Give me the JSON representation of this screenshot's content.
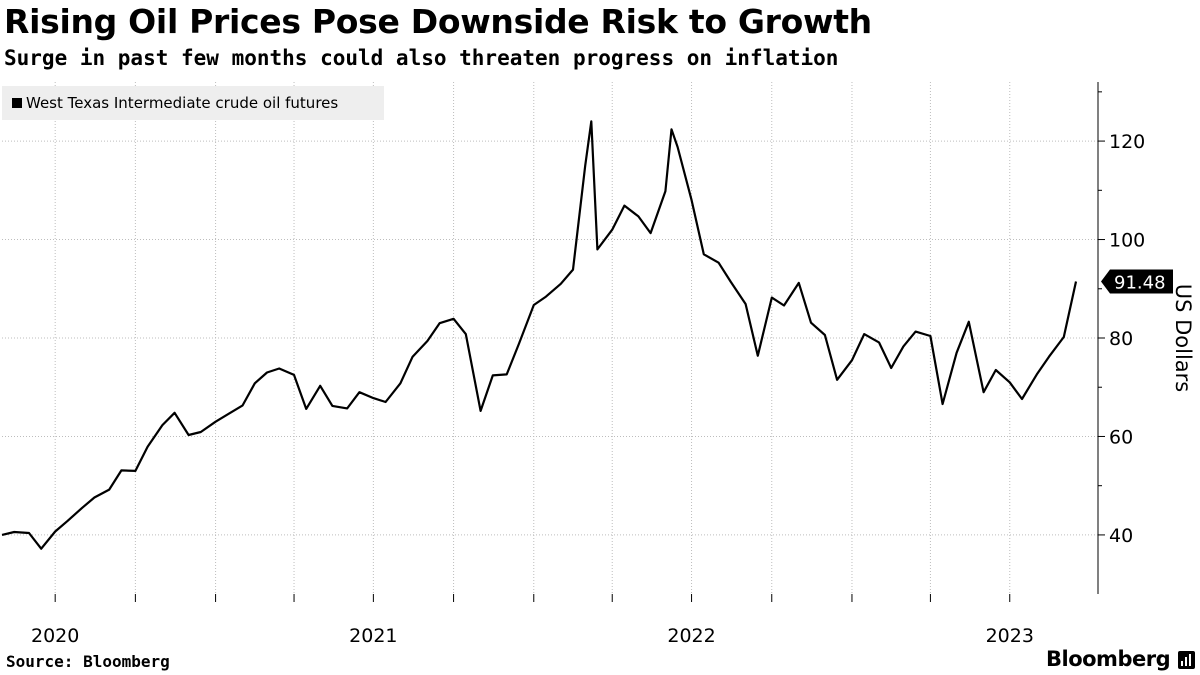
{
  "header": {
    "title": "Rising Oil Prices Pose Downside Risk to Growth",
    "subtitle": "Surge in past few months could also threaten progress on inflation"
  },
  "footer": {
    "source": "Source: Bloomberg",
    "brand": "Bloomberg"
  },
  "colors": {
    "line": "#000000",
    "grid": "#bdbdbd",
    "legend_bg": "#eeeeee",
    "last_badge": "#000000"
  },
  "icons": {
    "brand": "bloomberg-chart-icon"
  },
  "chart_data": {
    "type": "line",
    "title": "Rising Oil Prices Pose Downside Risk to Growth",
    "subtitle": "Surge in past few months could also threaten progress on inflation",
    "ylabel": "US Dollars",
    "ylim": [
      28,
      132
    ],
    "yticks": [
      40,
      60,
      80,
      100,
      120
    ],
    "xlim": [
      "2020-05-01",
      "2023-09-15"
    ],
    "xtick_labels": [
      {
        "label": "2020",
        "date": "2020-07-01"
      },
      {
        "label": "2021",
        "date": "2021-07-01"
      },
      {
        "label": "2022",
        "date": "2022-07-01"
      },
      {
        "label": "2023",
        "date": "2023-07-01"
      }
    ],
    "y_axis_side": "right",
    "grid": true,
    "legend_position": "top-left",
    "last_value_label": "91.48",
    "series": [
      {
        "name": "West Texas Intermediate crude oil futures",
        "x": [
          "2020-05-01",
          "2020-05-15",
          "2020-06-01",
          "2020-06-15",
          "2020-07-01",
          "2020-07-15",
          "2020-08-01",
          "2020-08-15",
          "2020-09-01",
          "2020-09-15",
          "2020-10-01",
          "2020-10-15",
          "2020-11-01",
          "2020-11-15",
          "2020-12-01",
          "2020-12-15",
          "2021-01-01",
          "2021-01-15",
          "2021-02-01",
          "2021-02-15",
          "2021-03-01",
          "2021-03-15",
          "2021-04-01",
          "2021-04-15",
          "2021-05-01",
          "2021-05-15",
          "2021-06-01",
          "2021-06-15",
          "2021-07-01",
          "2021-07-15",
          "2021-08-01",
          "2021-08-15",
          "2021-09-01",
          "2021-09-15",
          "2021-10-01",
          "2021-10-15",
          "2021-11-01",
          "2021-11-15",
          "2021-12-01",
          "2021-12-15",
          "2022-01-01",
          "2022-01-15",
          "2022-02-01",
          "2022-02-15",
          "2022-03-01",
          "2022-03-08",
          "2022-03-15",
          "2022-04-01",
          "2022-04-15",
          "2022-05-01",
          "2022-05-15",
          "2022-06-01",
          "2022-06-08",
          "2022-06-15",
          "2022-07-01",
          "2022-07-15",
          "2022-08-01",
          "2022-08-15",
          "2022-09-01",
          "2022-09-15",
          "2022-10-01",
          "2022-10-15",
          "2022-11-01",
          "2022-11-15",
          "2022-12-01",
          "2022-12-15",
          "2023-01-01",
          "2023-01-15",
          "2023-02-01",
          "2023-02-15",
          "2023-03-01",
          "2023-03-15",
          "2023-04-01",
          "2023-04-15",
          "2023-05-01",
          "2023-05-15",
          "2023-06-01",
          "2023-06-15",
          "2023-07-01",
          "2023-07-15",
          "2023-08-01",
          "2023-08-15",
          "2023-09-01",
          "2023-09-15"
        ],
        "values": [
          40.0,
          40.6,
          40.4,
          37.2,
          40.7,
          42.8,
          45.5,
          47.6,
          49.2,
          53.1,
          53.0,
          57.9,
          62.3,
          64.8,
          60.3,
          60.9,
          63.0,
          64.5,
          66.3,
          70.8,
          73.0,
          73.8,
          72.5,
          65.6,
          70.3,
          66.2,
          65.7,
          69.0,
          67.8,
          67.0,
          70.8,
          76.2,
          79.4,
          83.0,
          83.9,
          80.8,
          65.2,
          72.4,
          72.6,
          78.8,
          86.7,
          88.4,
          91.0,
          93.9,
          115.0,
          124.0,
          98.0,
          102.0,
          106.9,
          104.7,
          101.3,
          109.8,
          122.4,
          118.8,
          108.0,
          97.0,
          95.3,
          91.4,
          86.9,
          76.4,
          88.2,
          86.6,
          91.2,
          83.1,
          80.6,
          71.5,
          75.5,
          80.8,
          79.1,
          73.9,
          78.3,
          81.3,
          80.4,
          66.6,
          77.0,
          83.3,
          69.0,
          73.5,
          71.0,
          67.6,
          72.6,
          76.2,
          80.2,
          91.48
        ]
      }
    ]
  }
}
